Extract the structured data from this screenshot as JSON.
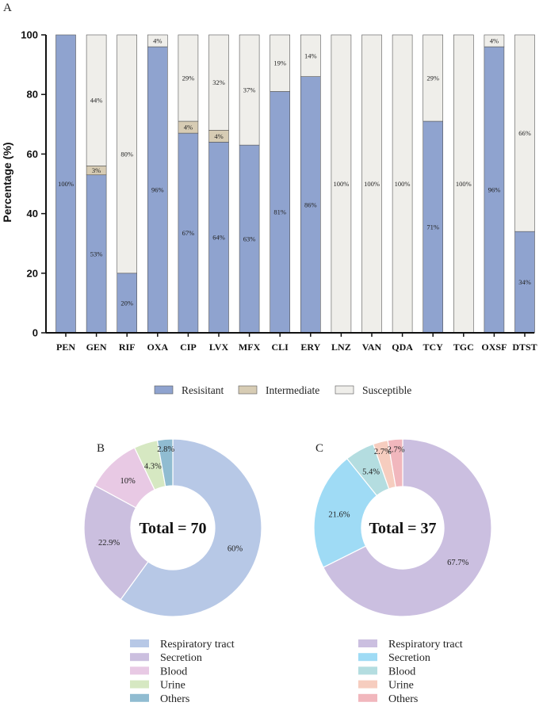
{
  "chart_data": [
    {
      "panel_label": "A",
      "type": "bar",
      "stacked": true,
      "title": "",
      "xlabel": "",
      "ylabel": "Percentage (%)",
      "ylim": [
        0,
        100
      ],
      "yticks": [
        "0",
        "20",
        "40",
        "60",
        "80",
        "100"
      ],
      "categories": [
        "PEN",
        "GEN",
        "RIF",
        "OXA",
        "CIP",
        "LVX",
        "MFX",
        "CLI",
        "ERY",
        "LNZ",
        "VAN",
        "QDA",
        "TCY",
        "TGC",
        "OXSF",
        "DTST"
      ],
      "series": [
        {
          "name": "Resisitant",
          "color": "#8fa3cf",
          "values": [
            100,
            53,
            20,
            96,
            67,
            64,
            63,
            81,
            86,
            0,
            0,
            0,
            71,
            0,
            96,
            34
          ],
          "labels": [
            "100%",
            "53%",
            "20%",
            "96%",
            "67%",
            "64%",
            "63%",
            "81%",
            "86%",
            "",
            "",
            "",
            "71%",
            "",
            "96%",
            "34%"
          ]
        },
        {
          "name": "Intermediate",
          "color": "#d7ccb4",
          "values": [
            0,
            3,
            0,
            0,
            4,
            4,
            0,
            0,
            0,
            0,
            0,
            0,
            0,
            0,
            0,
            0
          ],
          "labels": [
            "",
            "3%",
            "",
            "",
            "4%",
            "4%",
            "",
            "",
            "",
            "",
            "",
            "",
            "",
            "",
            "",
            ""
          ]
        },
        {
          "name": "Susceptible",
          "color": "#efeeea",
          "values": [
            0,
            44,
            80,
            4,
            29,
            32,
            37,
            19,
            14,
            100,
            100,
            100,
            29,
            100,
            4,
            66
          ],
          "labels": [
            "",
            "44%",
            "80%",
            "4%",
            "29%",
            "32%",
            "37%",
            "19%",
            "14%",
            "100%",
            "100%",
            "100%",
            "29%",
            "100%",
            "4%",
            "66%"
          ]
        }
      ],
      "legend": [
        "Resisitant",
        "Intermediate",
        "Susceptible"
      ]
    },
    {
      "panel_label": "B",
      "type": "pie",
      "donut": true,
      "center_text": "Total = 70",
      "slices": [
        {
          "name": "Respiratory tract",
          "value": 60,
          "label": "60%",
          "color": "#b7c8e6"
        },
        {
          "name": "Secretion",
          "value": 22.9,
          "label": "22.9%",
          "color": "#cbbfdf"
        },
        {
          "name": "Blood",
          "value": 10,
          "label": "10%",
          "color": "#e8c9e4"
        },
        {
          "name": "Urine",
          "value": 4.3,
          "label": "4.3%",
          "color": "#d6e8c2"
        },
        {
          "name": "Others",
          "value": 2.8,
          "label": "2.8%",
          "color": "#90bcd1"
        }
      ]
    },
    {
      "panel_label": "C",
      "type": "pie",
      "donut": true,
      "center_text": "Total = 37",
      "slices": [
        {
          "name": "Respiratory tract",
          "value": 67.7,
          "label": "67.7%",
          "color": "#cbbfe0"
        },
        {
          "name": "Secretion",
          "value": 21.6,
          "label": "21.6%",
          "color": "#9fdbf5"
        },
        {
          "name": "Blood",
          "value": 5.4,
          "label": "5.4%",
          "color": "#b4dde0"
        },
        {
          "name": "Urine",
          "value": 2.7,
          "label": "2.7%",
          "color": "#f6cdbf"
        },
        {
          "name": "Others",
          "value": 2.7,
          "label": "2.7%",
          "color": "#f1b7bd"
        }
      ]
    }
  ]
}
